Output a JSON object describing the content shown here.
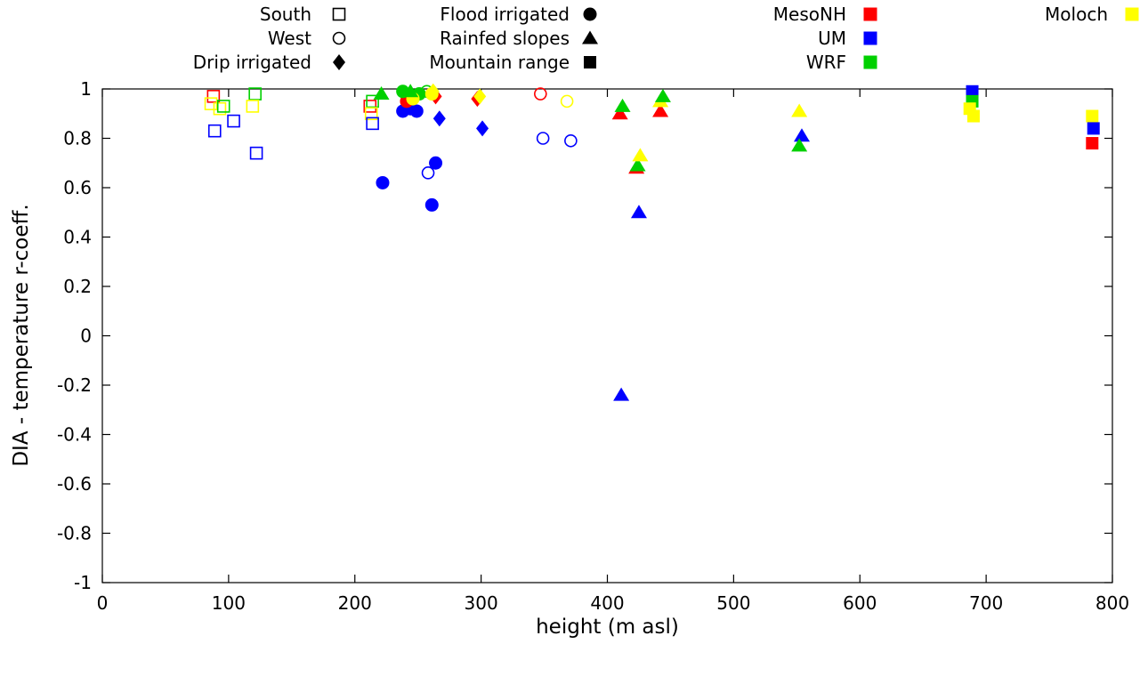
{
  "chart_data": {
    "type": "scatter",
    "title": "",
    "xlabel": "height (m asl)",
    "ylabel": "DIA - temperature r-coeff.",
    "xlim": [
      0,
      800
    ],
    "ylim": [
      -1,
      1
    ],
    "xticks": [
      0,
      100,
      200,
      300,
      400,
      500,
      600,
      700,
      800
    ],
    "yticks": [
      -1,
      -0.8,
      -0.6,
      -0.4,
      -0.2,
      0,
      0.2,
      0.4,
      0.6,
      0.8,
      1
    ],
    "grid": false,
    "legend_position": "top",
    "colors": {
      "MesoNH": "#ff0000",
      "UM": "#0000ff",
      "WRF": "#00d000",
      "Moloch": "#ffff00"
    },
    "legend": {
      "shape_entries": [
        {
          "label": "South",
          "shape": "open-square"
        },
        {
          "label": "West",
          "shape": "open-circle"
        },
        {
          "label": "Drip irrigated",
          "shape": "filled-diamond"
        },
        {
          "label": "Flood irrigated",
          "shape": "filled-circle"
        },
        {
          "label": "Rainfed slopes",
          "shape": "filled-triangle"
        },
        {
          "label": "Mountain range",
          "shape": "filled-square"
        }
      ],
      "color_entries": [
        {
          "label": "MesoNH",
          "color": "#ff0000"
        },
        {
          "label": "UM",
          "color": "#0000ff"
        },
        {
          "label": "WRF",
          "color": "#00d000"
        },
        {
          "label": "Moloch",
          "color": "#ffff00"
        }
      ]
    },
    "points": [
      {
        "x": 88,
        "y": 0.97,
        "shape": "open-square",
        "model": "MesoNH"
      },
      {
        "x": 86,
        "y": 0.94,
        "shape": "open-square",
        "model": "Moloch"
      },
      {
        "x": 93,
        "y": 0.92,
        "shape": "open-square",
        "model": "Moloch"
      },
      {
        "x": 96,
        "y": 0.93,
        "shape": "open-square",
        "model": "WRF"
      },
      {
        "x": 89,
        "y": 0.83,
        "shape": "open-square",
        "model": "UM"
      },
      {
        "x": 104,
        "y": 0.87,
        "shape": "open-square",
        "model": "UM"
      },
      {
        "x": 121,
        "y": 0.98,
        "shape": "open-square",
        "model": "WRF"
      },
      {
        "x": 119,
        "y": 0.93,
        "shape": "open-square",
        "model": "Moloch"
      },
      {
        "x": 122,
        "y": 0.74,
        "shape": "open-square",
        "model": "UM"
      },
      {
        "x": 212,
        "y": 0.93,
        "shape": "open-square",
        "model": "MesoNH"
      },
      {
        "x": 214,
        "y": 0.95,
        "shape": "open-square",
        "model": "WRF"
      },
      {
        "x": 213,
        "y": 0.9,
        "shape": "open-square",
        "model": "Moloch"
      },
      {
        "x": 214,
        "y": 0.86,
        "shape": "open-square",
        "model": "UM"
      },
      {
        "x": 257,
        "y": 0.99,
        "shape": "open-circle",
        "model": "WRF"
      },
      {
        "x": 258,
        "y": 0.66,
        "shape": "open-circle",
        "model": "UM"
      },
      {
        "x": 347,
        "y": 0.98,
        "shape": "open-circle",
        "model": "MesoNH"
      },
      {
        "x": 368,
        "y": 0.95,
        "shape": "open-circle",
        "model": "Moloch"
      },
      {
        "x": 349,
        "y": 0.8,
        "shape": "open-circle",
        "model": "UM"
      },
      {
        "x": 371,
        "y": 0.79,
        "shape": "open-circle",
        "model": "UM"
      },
      {
        "x": 264,
        "y": 0.97,
        "shape": "filled-diamond",
        "model": "MesoNH"
      },
      {
        "x": 262,
        "y": 0.99,
        "shape": "filled-diamond",
        "model": "Moloch"
      },
      {
        "x": 267,
        "y": 0.88,
        "shape": "filled-diamond",
        "model": "UM"
      },
      {
        "x": 297,
        "y": 0.96,
        "shape": "filled-diamond",
        "model": "MesoNH"
      },
      {
        "x": 299,
        "y": 0.97,
        "shape": "filled-diamond",
        "model": "Moloch"
      },
      {
        "x": 301,
        "y": 0.84,
        "shape": "filled-diamond",
        "model": "UM"
      },
      {
        "x": 222,
        "y": 0.62,
        "shape": "filled-circle",
        "model": "UM"
      },
      {
        "x": 238,
        "y": 0.91,
        "shape": "filled-circle",
        "model": "UM"
      },
      {
        "x": 244,
        "y": 0.92,
        "shape": "filled-circle",
        "model": "UM"
      },
      {
        "x": 249,
        "y": 0.91,
        "shape": "filled-circle",
        "model": "UM"
      },
      {
        "x": 241,
        "y": 0.95,
        "shape": "filled-circle",
        "model": "MesoNH"
      },
      {
        "x": 238,
        "y": 0.99,
        "shape": "filled-circle",
        "model": "WRF"
      },
      {
        "x": 251,
        "y": 0.98,
        "shape": "filled-circle",
        "model": "WRF"
      },
      {
        "x": 246,
        "y": 0.96,
        "shape": "filled-circle",
        "model": "Moloch"
      },
      {
        "x": 261,
        "y": 0.98,
        "shape": "filled-circle",
        "model": "Moloch"
      },
      {
        "x": 264,
        "y": 0.7,
        "shape": "filled-circle",
        "model": "UM"
      },
      {
        "x": 261,
        "y": 0.53,
        "shape": "filled-circle",
        "model": "UM"
      },
      {
        "x": 221,
        "y": 0.98,
        "shape": "filled-triangle",
        "model": "WRF"
      },
      {
        "x": 244,
        "y": 0.99,
        "shape": "filled-triangle",
        "model": "WRF"
      },
      {
        "x": 410,
        "y": 0.9,
        "shape": "filled-triangle",
        "model": "MesoNH"
      },
      {
        "x": 412,
        "y": 0.93,
        "shape": "filled-triangle",
        "model": "WRF"
      },
      {
        "x": 423,
        "y": 0.68,
        "shape": "filled-triangle",
        "model": "MesoNH"
      },
      {
        "x": 424,
        "y": 0.69,
        "shape": "filled-triangle",
        "model": "WRF"
      },
      {
        "x": 426,
        "y": 0.73,
        "shape": "filled-triangle",
        "model": "Moloch"
      },
      {
        "x": 425,
        "y": 0.5,
        "shape": "filled-triangle",
        "model": "UM"
      },
      {
        "x": 411,
        "y": -0.24,
        "shape": "filled-triangle",
        "model": "UM"
      },
      {
        "x": 442,
        "y": 0.91,
        "shape": "filled-triangle",
        "model": "MesoNH"
      },
      {
        "x": 442,
        "y": 0.95,
        "shape": "filled-triangle",
        "model": "Moloch"
      },
      {
        "x": 444,
        "y": 0.97,
        "shape": "filled-triangle",
        "model": "WRF"
      },
      {
        "x": 552,
        "y": 0.91,
        "shape": "filled-triangle",
        "model": "Moloch"
      },
      {
        "x": 554,
        "y": 0.81,
        "shape": "filled-triangle",
        "model": "UM"
      },
      {
        "x": 552,
        "y": 0.77,
        "shape": "filled-triangle",
        "model": "WRF"
      },
      {
        "x": 689,
        "y": 0.99,
        "shape": "filled-square",
        "model": "UM"
      },
      {
        "x": 689,
        "y": 0.95,
        "shape": "filled-square",
        "model": "WRF"
      },
      {
        "x": 687,
        "y": 0.92,
        "shape": "filled-square",
        "model": "Moloch"
      },
      {
        "x": 690,
        "y": 0.89,
        "shape": "filled-square",
        "model": "Moloch"
      },
      {
        "x": 784,
        "y": 0.89,
        "shape": "filled-square",
        "model": "Moloch"
      },
      {
        "x": 785,
        "y": 0.84,
        "shape": "filled-square",
        "model": "UM"
      },
      {
        "x": 784,
        "y": 0.78,
        "shape": "filled-square",
        "model": "MesoNH"
      }
    ]
  }
}
